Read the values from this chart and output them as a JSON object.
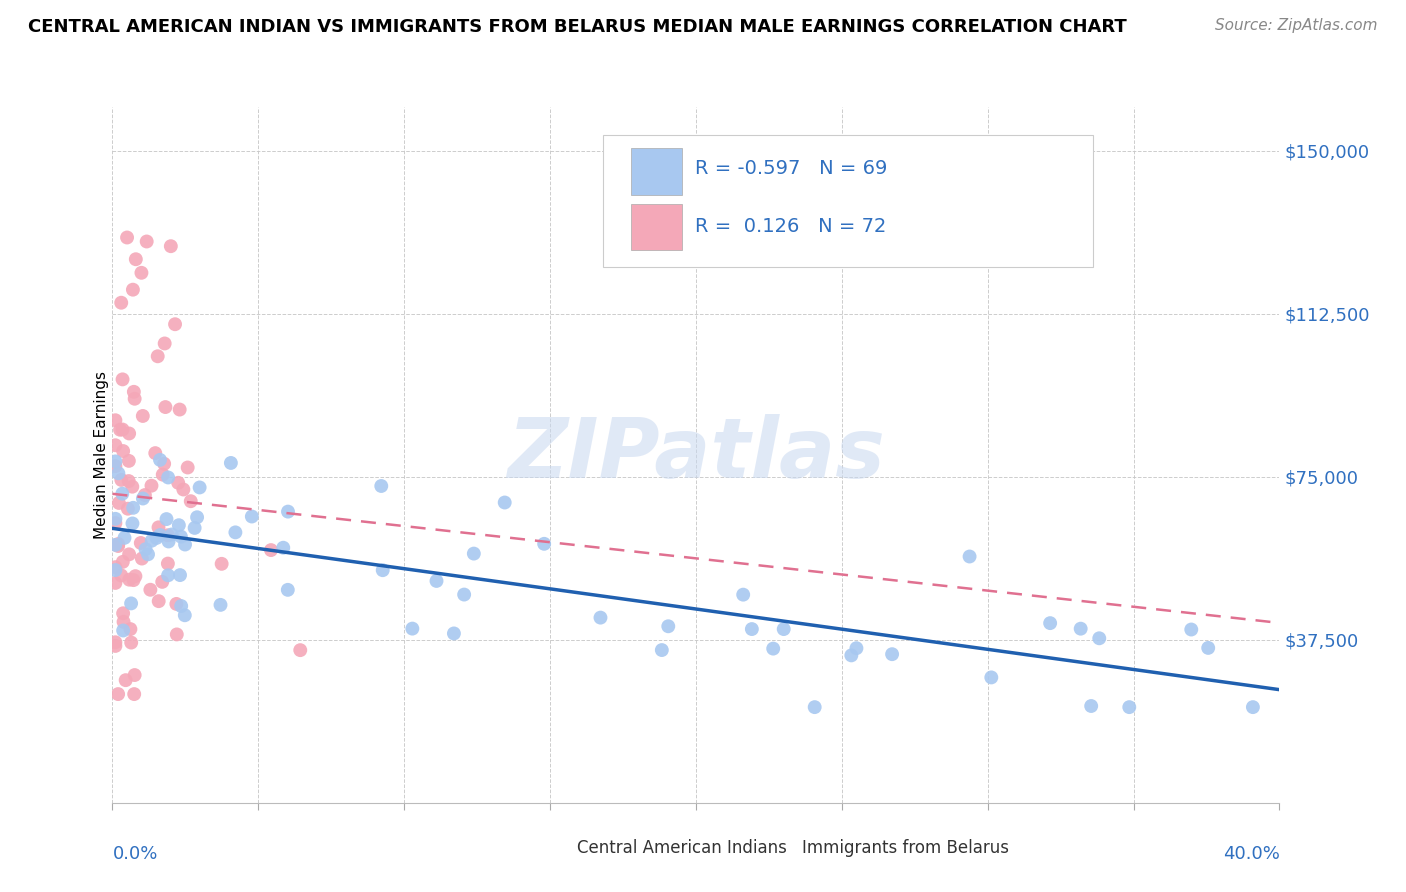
{
  "title": "CENTRAL AMERICAN INDIAN VS IMMIGRANTS FROM BELARUS MEDIAN MALE EARNINGS CORRELATION CHART",
  "source": "Source: ZipAtlas.com",
  "ylabel": "Median Male Earnings",
  "xlim": [
    0.0,
    0.4
  ],
  "ylim": [
    0,
    160000
  ],
  "legend_blue_r": "-0.597",
  "legend_blue_n": "69",
  "legend_pink_r": "0.126",
  "legend_pink_n": "72",
  "blue_color": "#A8C8F0",
  "pink_color": "#F4A8B8",
  "blue_line_color": "#2060B0",
  "pink_line_color": "#E07090",
  "watermark_color": "#C8D8F0",
  "ytick_color": "#3070C0",
  "legend_label_blue": "Central American Indians",
  "legend_label_pink": "Immigrants from Belarus",
  "title_fontsize": 13,
  "source_fontsize": 11
}
